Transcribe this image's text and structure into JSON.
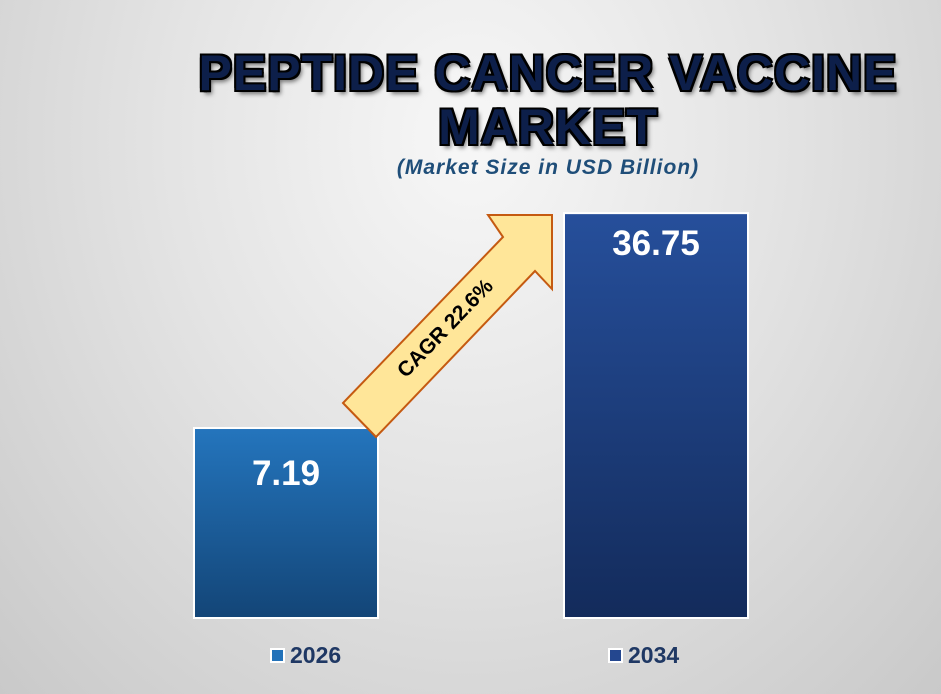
{
  "chart_data": {
    "type": "bar",
    "title": [
      "PEPTIDE CANCER VACCINE",
      "MARKET"
    ],
    "subtitle": "(Market Size in USD Billion)",
    "categories": [
      "2026",
      "2034"
    ],
    "values": [
      7.19,
      36.75
    ],
    "value_labels": [
      "7.19",
      "36.75"
    ],
    "annotation": "CAGR 22.6%",
    "colors": [
      "#2372b9",
      "#24478f"
    ],
    "legend": [
      "2026",
      "2034"
    ],
    "legend_placement": "bottom",
    "grid": false
  }
}
